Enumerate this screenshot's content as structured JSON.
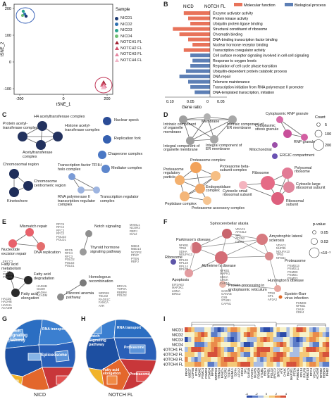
{
  "panel_labels": [
    "A",
    "B",
    "C",
    "D",
    "E",
    "F",
    "G",
    "H",
    "I"
  ],
  "A": {
    "xlabel": "tSNE_1",
    "ylabel": "tSNE_2",
    "xticks": [
      "-200",
      "0",
      "200"
    ],
    "yticks": [
      "200",
      "100",
      "0",
      "-100"
    ],
    "legend_title": "Sample",
    "legend": [
      {
        "name": "NICD1",
        "color": "#1f3b73",
        "shape": "circle"
      },
      {
        "name": "NICD2",
        "color": "#2e6fb0",
        "shape": "circle"
      },
      {
        "name": "NICD3",
        "color": "#2aa38c",
        "shape": "circle"
      },
      {
        "name": "NICD4",
        "color": "#6fbf73",
        "shape": "circle"
      },
      {
        "name": "NOTCH1 FL",
        "color": "#9f1d2e",
        "shape": "triangle"
      },
      {
        "name": "NOTCH2 FL",
        "color": "#d4506a",
        "shape": "triangle"
      },
      {
        "name": "NOTCH3 FL",
        "color": "#e784a0",
        "shape": "triangle"
      },
      {
        "name": "NOTCH4 FL",
        "color": "#f2b6c7",
        "shape": "triangle"
      }
    ]
  },
  "B": {
    "group_left": "NICD",
    "group_right": "NOTCH FL",
    "legend": [
      {
        "name": "Molecular function",
        "color": "#e8735a"
      },
      {
        "name": "Biological process",
        "color": "#5d7fb5"
      }
    ],
    "xlabel": "Gene ratio",
    "xticks": [
      "0.10",
      "0.05",
      "0",
      "0.05"
    ],
    "chart_data": {
      "type": "bar",
      "xlabel": "Gene ratio",
      "categories": [
        "Enzyme activator activity",
        "Protein kinase activity",
        "Ubiquitin protein ligase binding",
        "Structural constituent of ribosome",
        "Chromatin binding",
        "DNA-binding transcription factor binding",
        "Nuclear hormone receptor binding",
        "Transcription coregulator activity",
        "Cell surface receptor signaling involved in cell-cell signaling",
        "Response to oxygen levels",
        "Regulation of cell cycle phase transition",
        "Ubiquitin-dependent protein catabolic process",
        "DNA repair",
        "Telomere maintenance",
        "Transcription initiation from RNA polymerase II promoter",
        "DNA-templated transcription, initiation"
      ],
      "values": [
        -0.06,
        -0.05,
        -0.045,
        -0.085,
        -0.07,
        -0.05,
        -0.04,
        -0.06,
        -0.045,
        -0.04,
        -0.045,
        -0.055,
        -0.07,
        -0.05,
        -0.045,
        -0.035
      ],
      "category_type": [
        "mf",
        "mf",
        "mf",
        "mf",
        "mf",
        "mf",
        "mf",
        "mf",
        "bp",
        "bp",
        "bp",
        "bp",
        "bp",
        "bp",
        "bp",
        "bp"
      ]
    }
  },
  "C": {
    "nodes": [
      {
        "label": "H4 acetyltransferase complex",
        "color": "#23325e"
      },
      {
        "label": "Protein acetyl-transferase complex",
        "color": "#23325e"
      },
      {
        "label": "Histone acetyl-transferase complex",
        "color": "#23325e"
      },
      {
        "label": "Acetyltransferase complex",
        "color": "#23325e"
      },
      {
        "label": "Nuclear speck",
        "color": "#2b4c96"
      },
      {
        "label": "Replication fork",
        "color": "#3560b0"
      },
      {
        "label": "Chaperone complex",
        "color": "#4a77c4"
      },
      {
        "label": "Mediator complex",
        "color": "#5d86cc"
      },
      {
        "label": "Transcription factor TFIIH holo complex",
        "color": "#7a9bd6"
      },
      {
        "label": "Chromosomal region",
        "color": "#1e2d59"
      },
      {
        "label": "Chromosome centromeric region",
        "color": "#1e2d59"
      },
      {
        "label": "Kinetochore",
        "color": "#1e2d59"
      },
      {
        "label": "RNA polymerase II transcription regulator complex",
        "color": "#9db4e0"
      },
      {
        "label": "Transcription regulator complex",
        "color": "#9db4e0"
      }
    ]
  },
  "D": {
    "nodes": [
      {
        "label": "Intrinsic component of organelle membrane"
      },
      {
        "label": "Membrane"
      },
      {
        "label": "Intrinsic component of ER membrane"
      },
      {
        "label": "Integral component of organelle membrane"
      },
      {
        "label": "Integral component of ER membrane"
      },
      {
        "label": "Cytoplasmic RNP granule"
      },
      {
        "label": "Cytoplasmic stress granule"
      },
      {
        "label": "RNP granule"
      },
      {
        "label": "Mitochondrial"
      },
      {
        "label": "ERGIC compartment"
      },
      {
        "label": "Proteasome complex"
      },
      {
        "label": "Proteasome regulatory particle"
      },
      {
        "label": "Proteasome beta-subunit complex"
      },
      {
        "label": "Cytosolic small ribosomal subunit"
      },
      {
        "label": "Peptidase complex"
      },
      {
        "label": "Endopeptidase complex"
      },
      {
        "label": "Proteasome accessory complex"
      },
      {
        "label": "Ribosome"
      },
      {
        "label": "Polysomal ribosome"
      },
      {
        "label": "Cytosolic large ribosomal subunit"
      },
      {
        "label": "Ribosomal subunit"
      }
    ],
    "legend_title": "Count",
    "legend_values": [
      "5",
      "100",
      "200"
    ]
  },
  "E": {
    "groups": [
      {
        "title": "Mismatch repair",
        "genes": "RFC5\nRFC4\nRFC3\nRFC2\nPOLD2\nPOLD1"
      },
      {
        "title": "Nucleotide excision repair",
        "genes": "ERCC2\nRFC5\nRFC4\nRFC2\nPOLD2\nPOLD1"
      },
      {
        "title": "DNA replication",
        "genes": "RFC5\nRFC4\nRFC3\nPOLD2\nPOLE2\nPOLE1"
      },
      {
        "title": "Notch signaling",
        "genes": "MAML1\nNCOR2\nRBPJ\nDVL2"
      },
      {
        "title": "Thyroid hormone signaling pathway",
        "genes": "MED4\nMED14\nNCOR2\nPFKP\nPTEN\nRBPJ"
      },
      {
        "title": "Fatty acid metabolism",
        "genes": "HACD3\nHADHB\nHADHA\nACADM"
      },
      {
        "title": "Fatty acid degradation",
        "genes": "HADHB\nGCDH\nHADHA\nACADM"
      },
      {
        "title": "Homologous recombination",
        "genes": "BRCA1\nTOP3A\nRBBP8\nPOLD2"
      },
      {
        "title": "Fanconi anemia pathway",
        "genes": "WDR48\nTELO2\nRAD51C\nFANCA\nATR"
      },
      {
        "title": "Fatty acid elongation",
        "genes": "HACD3\nHSD17B12\nHADHB\nHADHA"
      }
    ]
  },
  "F": {
    "nodes": [
      {
        "title": "Spinocerebellar ataxia",
        "genes": "VDAC1\nAFG3L2\nSP1\nATXN2\nITPR3"
      },
      {
        "title": "Parkinson's disease",
        "genes": "NFKB1\nTP53\nSDHA\nNDUFA13"
      },
      {
        "title": "Amyotrophic lateral sclerosis",
        "genes": "VDAC1\nNUP85\nNDUFA13\nTP53\nNFKB1"
      },
      {
        "title": "Ribosome",
        "genes": "RPL36\nRPL18\nRPL14\nRPLP0"
      },
      {
        "title": "Alzheimer's disease",
        "genes": "NFKB1\nMAPK1\nSNCA\nCHUK\nCAPN1"
      },
      {
        "title": "Proteasome",
        "genes": "PSMD13\nPSMD11\nPSMD9\nPSMD1\nPSMD3"
      },
      {
        "title": "Apoptosis",
        "genes": "EIF2AK3\nMAP2K1\nLMNA\nBIRC2"
      },
      {
        "title": "Protein processing in endoplasmic reticulum",
        "genes": "SAR1B\nGANAB\nOS9\nSTUB1\nCAPN1"
      },
      {
        "title": "Huntington's disease",
        "genes": "TP53\nSP1\nAP2A2"
      },
      {
        "title": "Epstein-Barr virus infection",
        "genes": "PSMD8\nNFKB1\nCHUK\nCDK4"
      }
    ],
    "legend_title": "p-value",
    "legend_values": [
      "0.05",
      "0.03",
      "<10⁻³"
    ]
  },
  "G": {
    "title": "NICD",
    "labels": [
      "Notch Signaling pathway",
      "RNA transport",
      "Spliceosome"
    ]
  },
  "H": {
    "title": "NOTCH FL",
    "labels": [
      "RNA transport",
      "Notch Signaling pathway",
      "Proteasome",
      "Proteasome",
      "Fatty acid elongation"
    ]
  },
  "I": {
    "rows": [
      "NICD1",
      "NICD2",
      "NICD3",
      "NICD4",
      "NOTCH1 FL",
      "NOTCH2 FL",
      "NOTCH3 FL",
      "NOTCH4 FL"
    ],
    "cols": [
      "PFKP",
      "UBE2T",
      "COPS6",
      "IFT46",
      "MDM2",
      "PSMC4",
      "PSMD3",
      "PSMD4",
      "RPS6",
      "SNRPD3",
      "TRIM24",
      "FANCA",
      "NCOR2",
      "TOP3A",
      "MAML1",
      "SDHA",
      "AP2A2",
      "CDK4",
      "SP1",
      "SAR1B",
      "HADHA",
      "NUP85",
      "PSMD8",
      "STUB1",
      "RBPJ",
      "NFKB1",
      "POLD2",
      "ERCC2",
      "BIRC2",
      "ATR",
      "CHUK",
      "RFC5",
      "MAP2K1",
      "PTEN",
      "PSMD11",
      "RPL14",
      "RPLP0",
      "PSMD13",
      "RFC4",
      "VDAC1",
      "ACADM",
      "NFKB2",
      "RBBP8",
      "PHB2"
    ],
    "scale_ticks": [
      "-4",
      "-2",
      "0",
      "2",
      "4"
    ]
  }
}
